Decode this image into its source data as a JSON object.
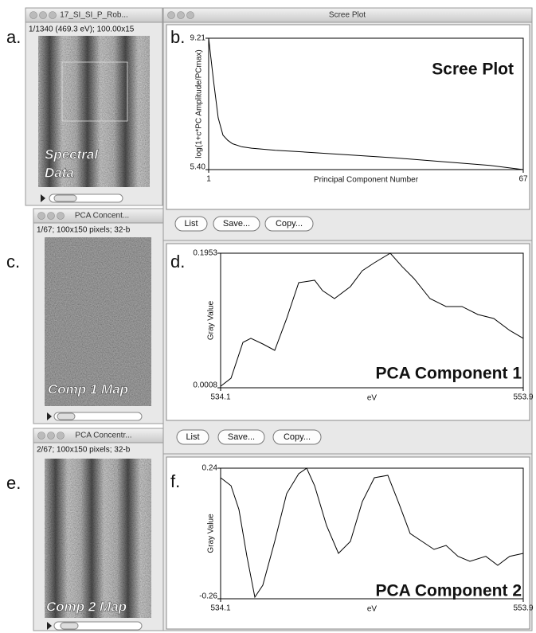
{
  "panel_labels": [
    "a.",
    "b.",
    "c.",
    "d.",
    "e.",
    "f."
  ],
  "image_windows": [
    {
      "title": "17_SI_SI_P_Rob...",
      "info": "1/1340 (469.3 eV); 100.00x15",
      "overlay": [
        "Spectral",
        "Data"
      ]
    },
    {
      "title": "PCA Concent...",
      "info": "1/67; 100x150 pixels; 32-b",
      "overlay": [
        "Comp 1 Map"
      ]
    },
    {
      "title": "PCA Concentr...",
      "info": "2/67; 100x150 pixels; 32-b",
      "overlay": [
        "Comp 2 Map"
      ]
    }
  ],
  "scree_window": {
    "title": "Scree Plot"
  },
  "button_rows": [
    [
      "List",
      "Save...",
      "Copy..."
    ],
    [
      "List",
      "Save...",
      "Copy..."
    ]
  ],
  "chart_data": [
    {
      "type": "line",
      "title": "Scree Plot",
      "x_label": "Principal Component Number",
      "y_label": "log(1+c*PC Amplitude/PCmax)",
      "x": [
        1,
        2,
        3,
        4,
        5,
        6,
        8,
        10,
        15,
        20,
        30,
        40,
        50,
        60,
        67
      ],
      "series": [
        {
          "color": "#000000",
          "values": [
            9.21,
            8.0,
            6.9,
            6.4,
            6.25,
            6.15,
            6.06,
            6.02,
            5.96,
            5.92,
            5.83,
            5.74,
            5.63,
            5.52,
            5.4
          ]
        }
      ],
      "xlim": [
        1,
        67
      ],
      "ylim": [
        5.4,
        9.21
      ],
      "xticks": [
        1,
        67
      ],
      "yticks": [
        9.21,
        {
          "value": 5.4,
          "label": "5.40"
        }
      ]
    },
    {
      "type": "line",
      "title": "PCA Component 1",
      "x_label": "eV",
      "y_label": "Gray Value",
      "x": [
        534.1,
        534.78,
        535.56,
        536.08,
        536.86,
        537.64,
        538.42,
        539.21,
        540.25,
        540.77,
        541.55,
        542.59,
        543.37,
        544.16,
        545.2,
        545.98,
        546.76,
        547.8,
        548.85,
        549.89,
        550.93,
        551.97,
        553.01,
        553.9
      ],
      "series": [
        {
          "color": "#000000",
          "values": [
            0.003,
            0.0146,
            0.0664,
            0.0722,
            0.0641,
            0.0549,
            0.1009,
            0.1527,
            0.1562,
            0.1412,
            0.1297,
            0.147,
            0.17,
            0.1815,
            0.1953,
            0.1758,
            0.1585,
            0.1297,
            0.1182,
            0.1182,
            0.1067,
            0.1009,
            0.0837,
            0.0722
          ]
        }
      ],
      "xlim": [
        534.1,
        553.9
      ],
      "ylim": [
        0.0008,
        0.1953
      ],
      "xticks": [
        534.1,
        553.9
      ],
      "yticks": [
        0.1953,
        0.0008
      ]
    },
    {
      "type": "line",
      "title": "PCA Component 2",
      "x_label": "eV",
      "y_label": "Gray Value",
      "x": [
        534.1,
        534.78,
        535.3,
        535.82,
        536.34,
        536.86,
        537.64,
        538.42,
        539.21,
        539.73,
        540.25,
        541.03,
        541.81,
        542.59,
        543.37,
        544.16,
        545.04,
        545.72,
        546.5,
        547.28,
        548.06,
        548.85,
        549.63,
        550.41,
        551.45,
        552.23,
        553.01,
        553.9
      ],
      "series": [
        {
          "color": "#000000",
          "values": [
            0.2034,
            0.1729,
            0.0815,
            -0.0975,
            -0.2539,
            -0.2082,
            -0.0405,
            0.1424,
            0.2187,
            0.24,
            0.1729,
            0.0205,
            -0.0862,
            -0.0405,
            0.1119,
            0.2034,
            0.2126,
            0.1119,
            -0.01,
            -0.0405,
            -0.071,
            -0.0558,
            -0.0975,
            -0.1167,
            -0.0975,
            -0.132,
            -0.0975,
            -0.0862
          ]
        }
      ],
      "xlim": [
        534.1,
        553.9
      ],
      "ylim": [
        -0.26,
        0.24
      ],
      "xticks": [
        534.1,
        553.9
      ],
      "yticks": [
        0.24,
        -0.26
      ]
    }
  ]
}
